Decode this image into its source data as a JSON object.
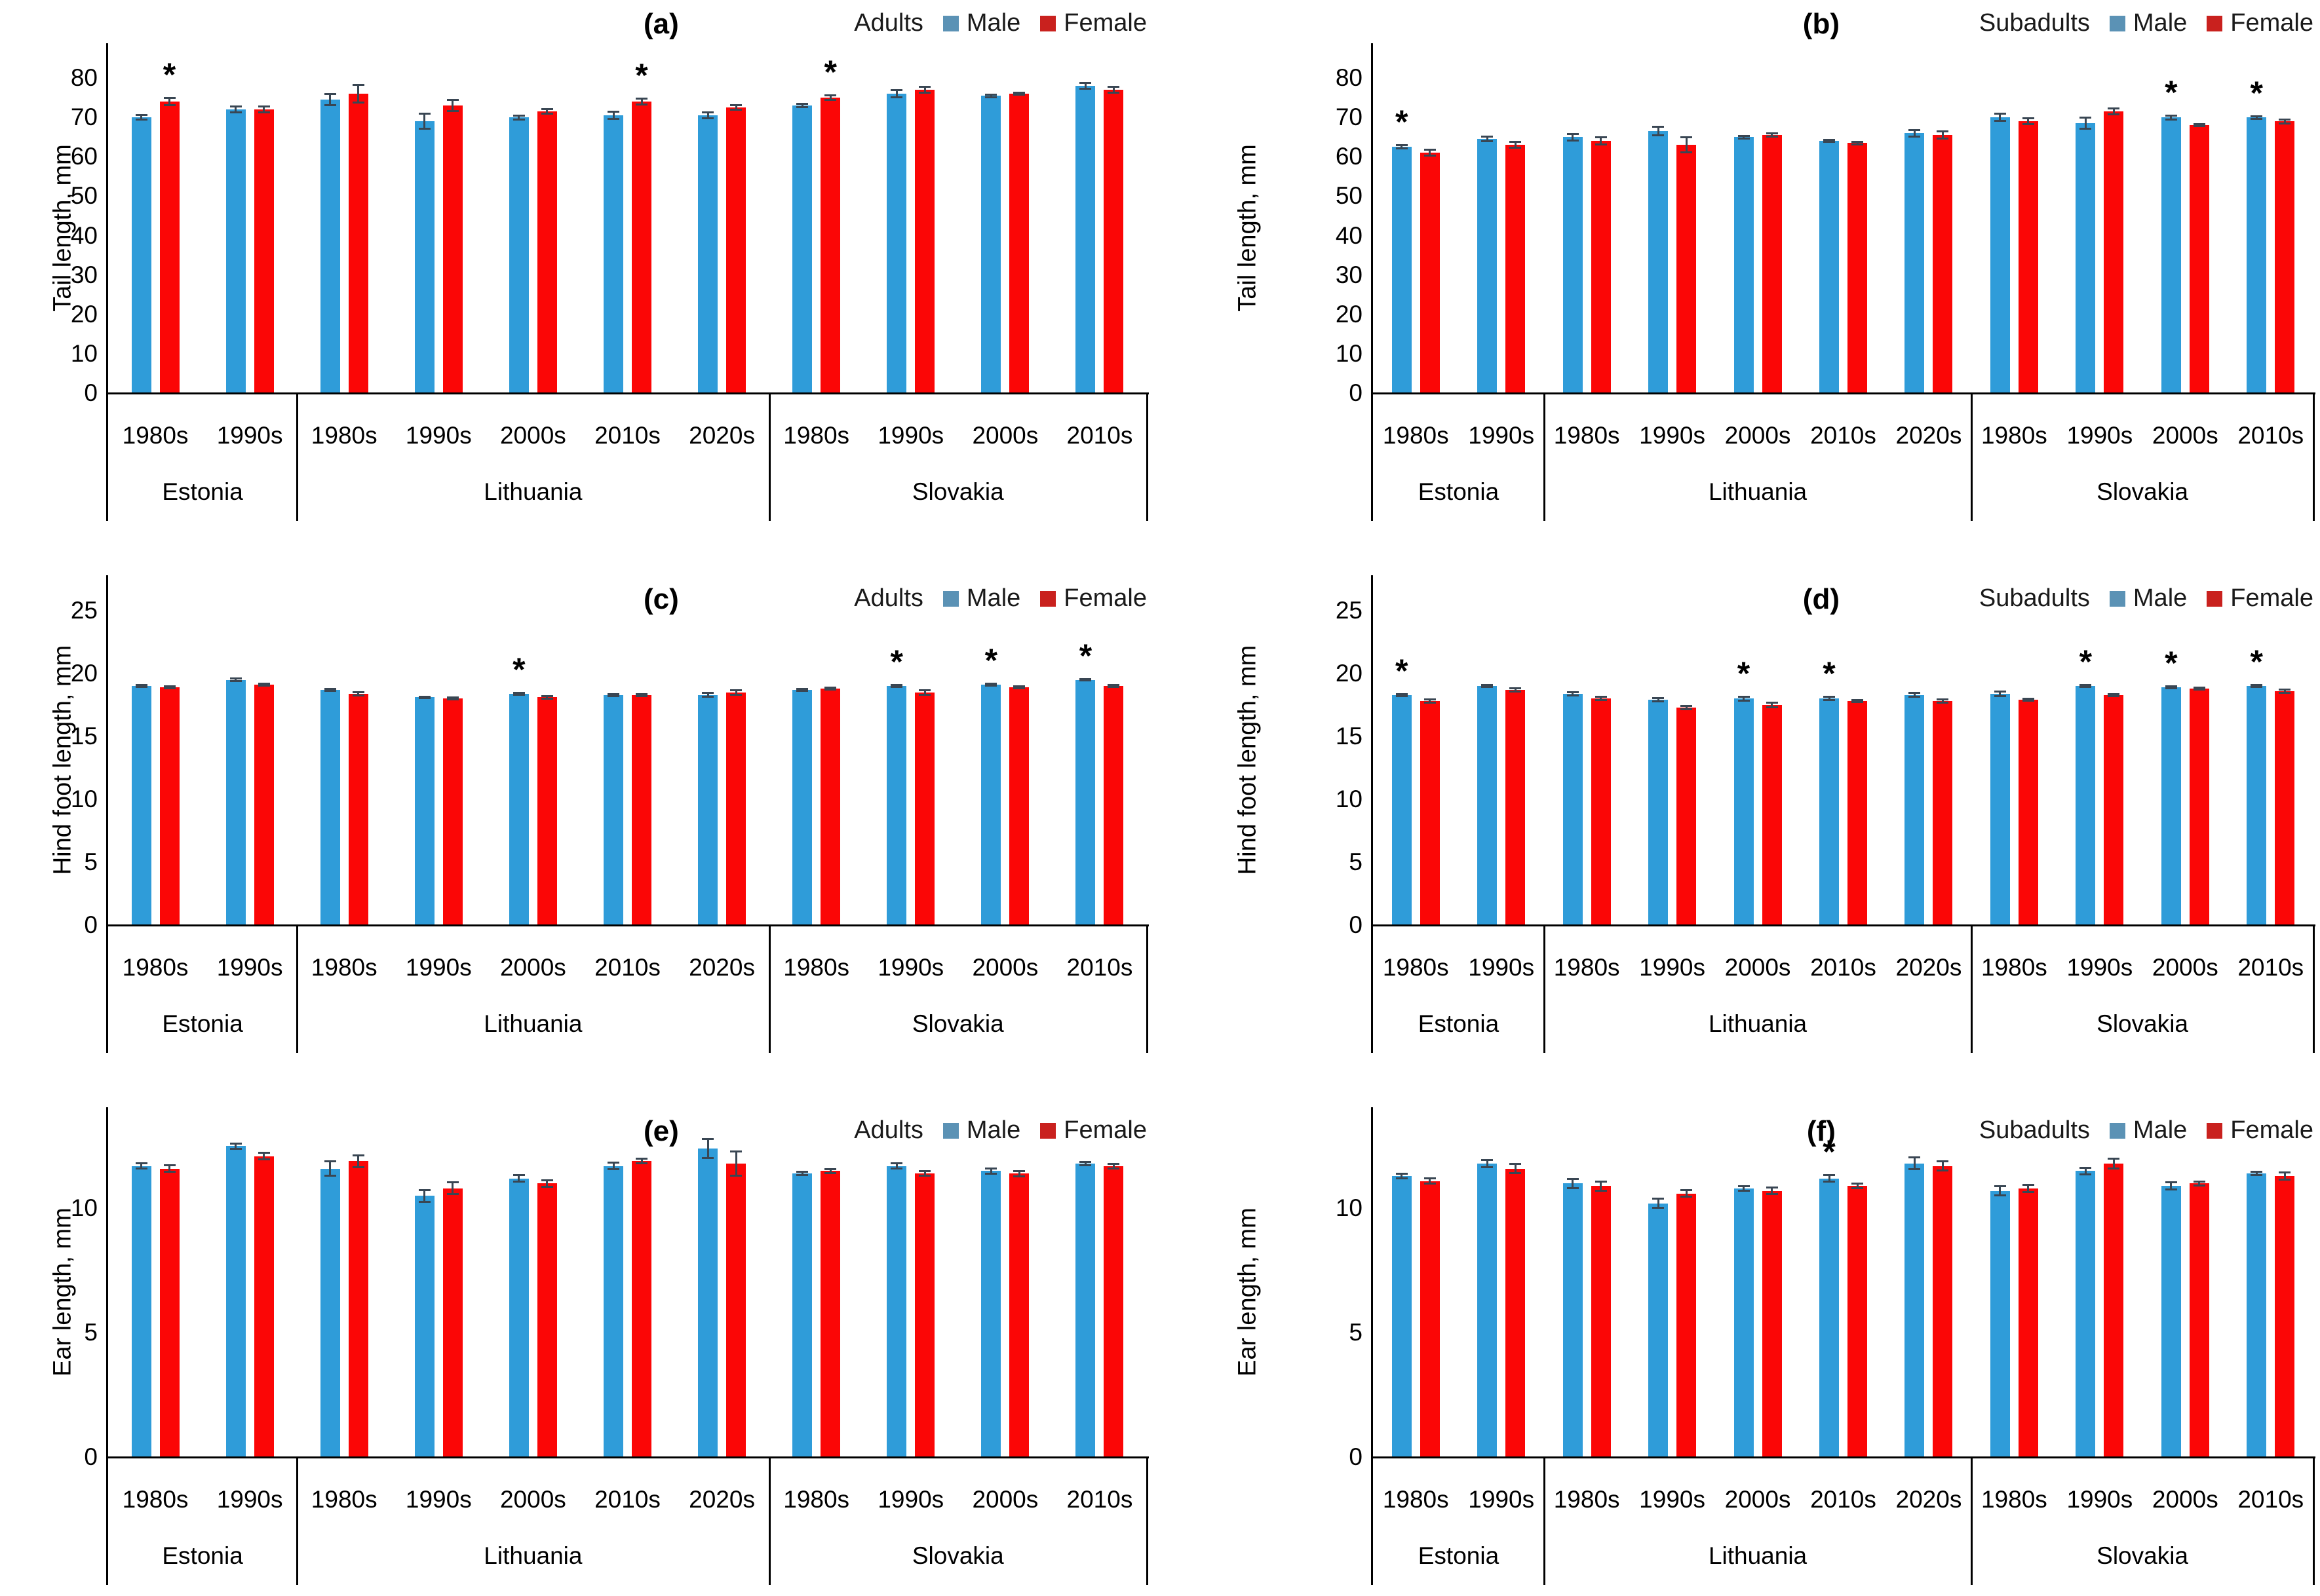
{
  "figure_type": "multi-panel grouped bar chart with error bars",
  "colors": {
    "male_bar": "#2F9CD9",
    "female_bar": "#FB0606",
    "male_legend": "#5B92B5",
    "female_legend": "#C9211E",
    "error_bar": "#394653",
    "axis": "#000000",
    "text": "#000000"
  },
  "categories": {
    "groups": [
      {
        "label": "Estonia",
        "decades": [
          "1980s",
          "1990s"
        ]
      },
      {
        "label": "Lithuania",
        "decades": [
          "1980s",
          "1990s",
          "2000s",
          "2010s",
          "2020s"
        ]
      },
      {
        "label": "Slovakia",
        "decades": [
          "1980s",
          "1990s",
          "2000s",
          "2010s"
        ]
      }
    ],
    "flat": [
      "Estonia 1980s",
      "Estonia 1990s",
      "Lithuania 1980s",
      "Lithuania 1990s",
      "Lithuania 2000s",
      "Lithuania 2010s",
      "Lithuania 2020s",
      "Slovakia 1980s",
      "Slovakia 1990s",
      "Slovakia 2000s",
      "Slovakia 2010s"
    ]
  },
  "significance_marker": "*",
  "chart_data": [
    {
      "id": "a",
      "type": "bar",
      "panel": "(a)",
      "age_group": "Adults",
      "ylabel": "Tail length, mm",
      "yticks": [
        0,
        10,
        20,
        30,
        40,
        50,
        60,
        70,
        80
      ],
      "ylim": [
        0,
        84
      ],
      "grid": false,
      "legend_position": "top-right",
      "legend": [
        "Male",
        "Female"
      ],
      "series": [
        {
          "name": "Male",
          "values": [
            70,
            72,
            74.5,
            69,
            70,
            70.5,
            70.5,
            73,
            76,
            75.5,
            78
          ],
          "errors": [
            0.7,
            0.8,
            1.5,
            2.0,
            0.6,
            1.0,
            0.8,
            0.5,
            1.0,
            0.4,
            0.8
          ],
          "significant": [
            0,
            0,
            0,
            0,
            0,
            0,
            0,
            0,
            0,
            0,
            0
          ]
        },
        {
          "name": "Female",
          "values": [
            74,
            72,
            76,
            73,
            71.5,
            74,
            72.5,
            75,
            77,
            76,
            77
          ],
          "errors": [
            1.0,
            0.8,
            2.3,
            1.5,
            0.7,
            0.8,
            0.7,
            0.7,
            0.8,
            0.3,
            0.8
          ],
          "significant": [
            1,
            0,
            0,
            0,
            0,
            1,
            0,
            1,
            0,
            0,
            0
          ]
        }
      ]
    },
    {
      "id": "b",
      "type": "bar",
      "panel": "(b)",
      "age_group": "Subadults",
      "ylabel": "Tail length, mm",
      "yticks": [
        0,
        10,
        20,
        30,
        40,
        50,
        60,
        70,
        80
      ],
      "ylim": [
        0,
        84
      ],
      "grid": false,
      "legend_position": "top-right",
      "legend": [
        "Male",
        "Female"
      ],
      "series": [
        {
          "name": "Male",
          "values": [
            62.5,
            64.5,
            65,
            66.5,
            65,
            64,
            66,
            70,
            68.5,
            70,
            70
          ],
          "errors": [
            0.5,
            0.7,
            0.9,
            1.2,
            0.4,
            0.3,
            0.9,
            1.0,
            1.5,
            0.6,
            0.4
          ],
          "significant": [
            1,
            0,
            0,
            0,
            0,
            0,
            0,
            0,
            0,
            1,
            1
          ]
        },
        {
          "name": "Female",
          "values": [
            61,
            63,
            64,
            63,
            65.5,
            63.5,
            65.5,
            69,
            71.5,
            68,
            69
          ],
          "errors": [
            0.8,
            0.8,
            1.0,
            2.0,
            0.5,
            0.4,
            1.0,
            0.8,
            0.8,
            0.3,
            0.6
          ],
          "significant": [
            0,
            0,
            0,
            0,
            0,
            0,
            0,
            0,
            0,
            0,
            0
          ]
        }
      ]
    },
    {
      "id": "c",
      "type": "bar",
      "panel": "(c)",
      "age_group": "Adults",
      "ylabel": "Hind foot length, mm",
      "yticks": [
        0,
        5,
        10,
        15,
        20,
        25
      ],
      "ylim": [
        0,
        26.3
      ],
      "grid": false,
      "legend_position": "top-right",
      "legend": [
        "Male",
        "Female"
      ],
      "series": [
        {
          "name": "Male",
          "values": [
            19.0,
            19.5,
            18.7,
            18.1,
            18.4,
            18.3,
            18.3,
            18.7,
            19.0,
            19.1,
            19.5
          ],
          "errors": [
            0.1,
            0.15,
            0.1,
            0.1,
            0.1,
            0.1,
            0.2,
            0.1,
            0.1,
            0.1,
            0.1
          ],
          "significant": [
            0,
            0,
            0,
            0,
            1,
            0,
            0,
            0,
            1,
            1,
            1
          ]
        },
        {
          "name": "Female",
          "values": [
            18.9,
            19.1,
            18.4,
            18.0,
            18.1,
            18.3,
            18.5,
            18.8,
            18.5,
            18.9,
            19.0
          ],
          "errors": [
            0.1,
            0.1,
            0.15,
            0.1,
            0.15,
            0.1,
            0.2,
            0.1,
            0.2,
            0.1,
            0.1
          ],
          "significant": [
            0,
            0,
            0,
            0,
            0,
            0,
            0,
            0,
            0,
            0,
            0
          ]
        }
      ]
    },
    {
      "id": "d",
      "type": "bar",
      "panel": "(d)",
      "age_group": "Subadults",
      "ylabel": "Hind foot length, mm",
      "yticks": [
        0,
        5,
        10,
        15,
        20,
        25
      ],
      "ylim": [
        0,
        26.3
      ],
      "grid": false,
      "legend_position": "top-right",
      "legend": [
        "Male",
        "Female"
      ],
      "series": [
        {
          "name": "Male",
          "values": [
            18.3,
            19.0,
            18.4,
            17.9,
            18.0,
            18.0,
            18.3,
            18.4,
            19.0,
            18.9,
            19.0
          ],
          "errors": [
            0.1,
            0.1,
            0.15,
            0.15,
            0.2,
            0.15,
            0.2,
            0.2,
            0.1,
            0.1,
            0.1
          ],
          "significant": [
            1,
            0,
            0,
            0,
            1,
            1,
            0,
            0,
            1,
            1,
            1
          ]
        },
        {
          "name": "Female",
          "values": [
            17.8,
            18.7,
            18.0,
            17.3,
            17.5,
            17.8,
            17.8,
            17.9,
            18.3,
            18.8,
            18.6
          ],
          "errors": [
            0.15,
            0.15,
            0.15,
            0.15,
            0.2,
            0.1,
            0.15,
            0.1,
            0.1,
            0.1,
            0.15
          ],
          "significant": [
            0,
            0,
            0,
            0,
            0,
            0,
            0,
            0,
            0,
            0,
            0
          ]
        }
      ]
    },
    {
      "id": "e",
      "type": "bar",
      "panel": "(e)",
      "age_group": "Adults",
      "ylabel": "Ear length, mm",
      "yticks": [
        0,
        5,
        10
      ],
      "ylim": [
        0,
        13.3
      ],
      "grid": false,
      "legend_position": "top-right",
      "legend": [
        "Male",
        "Female"
      ],
      "series": [
        {
          "name": "Male",
          "values": [
            11.7,
            12.5,
            11.6,
            10.5,
            11.2,
            11.7,
            12.4,
            11.4,
            11.7,
            11.5,
            11.8
          ],
          "errors": [
            0.12,
            0.12,
            0.3,
            0.25,
            0.15,
            0.15,
            0.4,
            0.08,
            0.12,
            0.12,
            0.08
          ],
          "significant": [
            0,
            0,
            0,
            0,
            0,
            0,
            0,
            0,
            0,
            0,
            0
          ]
        },
        {
          "name": "Female",
          "values": [
            11.6,
            12.1,
            11.9,
            10.8,
            11.0,
            11.9,
            11.8,
            11.5,
            11.4,
            11.4,
            11.7
          ],
          "errors": [
            0.15,
            0.15,
            0.25,
            0.25,
            0.15,
            0.1,
            0.5,
            0.1,
            0.1,
            0.12,
            0.1
          ],
          "significant": [
            0,
            0,
            0,
            0,
            0,
            0,
            0,
            0,
            0,
            0,
            0
          ]
        }
      ]
    },
    {
      "id": "f",
      "type": "bar",
      "panel": "(f)",
      "age_group": "Subadults",
      "ylabel": "Ear length, mm",
      "yticks": [
        0,
        5,
        10
      ],
      "ylim": [
        0,
        13.3
      ],
      "grid": false,
      "legend_position": "top-right",
      "legend": [
        "Male",
        "Female"
      ],
      "series": [
        {
          "name": "Male",
          "values": [
            11.3,
            11.8,
            11.0,
            10.2,
            10.8,
            11.2,
            11.8,
            10.7,
            11.5,
            10.9,
            11.4
          ],
          "errors": [
            0.1,
            0.15,
            0.2,
            0.2,
            0.1,
            0.15,
            0.25,
            0.2,
            0.15,
            0.15,
            0.08
          ],
          "significant": [
            0,
            0,
            0,
            0,
            0,
            1,
            0,
            0,
            0,
            0,
            0
          ]
        },
        {
          "name": "Female",
          "values": [
            11.1,
            11.6,
            10.9,
            10.6,
            10.7,
            10.9,
            11.7,
            10.8,
            11.8,
            11.0,
            11.3
          ],
          "errors": [
            0.12,
            0.2,
            0.2,
            0.15,
            0.15,
            0.1,
            0.2,
            0.15,
            0.2,
            0.1,
            0.15
          ],
          "significant": [
            0,
            0,
            0,
            0,
            0,
            0,
            0,
            0,
            0,
            0,
            0
          ]
        }
      ]
    }
  ]
}
